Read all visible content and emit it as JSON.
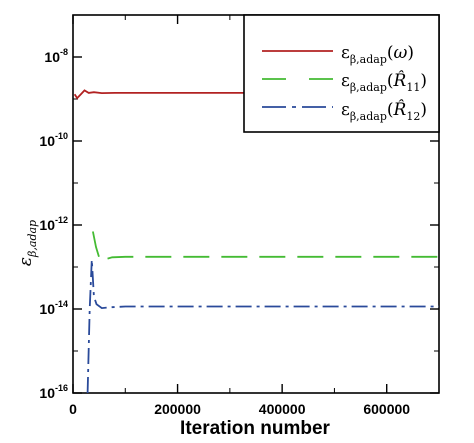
{
  "chart_data": {
    "type": "line",
    "title": "",
    "xlabel": "Iteration number",
    "ylabel": "ε_β,adap",
    "xlim": [
      0,
      700000
    ],
    "ylim": [
      1e-16,
      1e-07
    ],
    "yscale": "log",
    "grid": false,
    "legend_position": "top-right",
    "x_ticks": [
      {
        "value": 0,
        "label": "0"
      },
      {
        "value": 200000,
        "label": "200000"
      },
      {
        "value": 400000,
        "label": "400000"
      },
      {
        "value": 600000,
        "label": "600000"
      }
    ],
    "y_ticks": [
      {
        "value": 1e-16,
        "mantissa": "10",
        "exponent": "-16"
      },
      {
        "value": 1e-14,
        "mantissa": "10",
        "exponent": "-14"
      },
      {
        "value": 1e-12,
        "mantissa": "10",
        "exponent": "-12"
      },
      {
        "value": 1e-10,
        "mantissa": "10",
        "exponent": "-10"
      },
      {
        "value": 1e-08,
        "mantissa": "10",
        "exponent": "-8"
      }
    ],
    "series": [
      {
        "name": "ε_β,adap(ω)",
        "color": "#b22222",
        "dash": "solid",
        "points": [
          [
            3000,
            1.3e-09
          ],
          [
            8000,
            1.05e-09
          ],
          [
            14000,
            1.25e-09
          ],
          [
            22000,
            1.6e-09
          ],
          [
            30000,
            1.4e-09
          ],
          [
            40000,
            1.45e-09
          ],
          [
            55000,
            1.38e-09
          ],
          [
            80000,
            1.4e-09
          ],
          [
            200000,
            1.4e-09
          ],
          [
            400000,
            1.4e-09
          ],
          [
            600000,
            1.4e-09
          ],
          [
            700000,
            1.4e-09
          ]
        ]
      },
      {
        "name": "ε_β,adap(R̂11)",
        "color": "#44bb33",
        "dash": "long-dash",
        "points": [
          [
            38000,
            7e-13
          ],
          [
            44000,
            3e-13
          ],
          [
            52000,
            1.4e-13
          ],
          [
            60000,
            1.5e-13
          ],
          [
            75000,
            1.7e-13
          ],
          [
            100000,
            1.75e-13
          ],
          [
            200000,
            1.75e-13
          ],
          [
            400000,
            1.75e-13
          ],
          [
            600000,
            1.75e-13
          ],
          [
            700000,
            1.75e-13
          ]
        ]
      },
      {
        "name": "ε_β,adap(R̂12)",
        "color": "#2a4a9a",
        "dash": "dash-dot",
        "points": [
          [
            28000,
            1e-16
          ],
          [
            32000,
            1e-14
          ],
          [
            36000,
            1.5e-13
          ],
          [
            40000,
            2e-14
          ],
          [
            45000,
            1.3e-14
          ],
          [
            55000,
            1.05e-14
          ],
          [
            70000,
            1.1e-14
          ],
          [
            100000,
            1.15e-14
          ],
          [
            200000,
            1.15e-14
          ],
          [
            400000,
            1.15e-14
          ],
          [
            600000,
            1.15e-14
          ],
          [
            700000,
            1.15e-14
          ]
        ]
      }
    ]
  }
}
